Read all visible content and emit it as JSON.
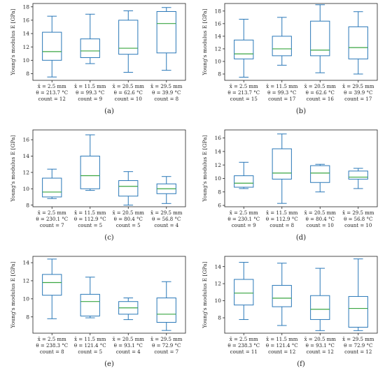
{
  "chart_data": [
    {
      "type": "box",
      "panel_label": "(a)",
      "ylabel": "Young's modulus E [GPa]",
      "ylim": [
        7,
        18.5
      ],
      "yticks": [
        8,
        10,
        12,
        14,
        16,
        18
      ],
      "categories": [
        [
          "x̄ = 2.5 mm",
          "θ = 213.7 °C",
          "count = 12"
        ],
        [
          "x̄ = 11.5 mm",
          "θ = 99.3 °C",
          "count = 9"
        ],
        [
          "x̄ = 20.5 mm",
          "θ = 62.6 °C",
          "count = 10"
        ],
        [
          "x̄ = 29.5 mm",
          "θ = 39.9 °C",
          "count = 8"
        ]
      ],
      "boxes": [
        {
          "min": 7.5,
          "q1": 10.0,
          "median": 11.3,
          "q3": 14.2,
          "max": 16.6
        },
        {
          "min": 9.5,
          "q1": 10.4,
          "median": 11.4,
          "q3": 13.2,
          "max": 16.9
        },
        {
          "min": 8.2,
          "q1": 10.9,
          "median": 11.8,
          "q3": 16.0,
          "max": 17.4
        },
        {
          "min": 8.5,
          "q1": 11.1,
          "median": 15.5,
          "q3": 17.3,
          "max": 17.9
        }
      ]
    },
    {
      "type": "box",
      "panel_label": "(b)",
      "ylabel": "Young's modulus E [GPa]",
      "ylim": [
        7,
        19.2
      ],
      "yticks": [
        8,
        10,
        12,
        14,
        16,
        18
      ],
      "categories": [
        [
          "x̄ = 2.5 mm",
          "θ = 213.7 °C",
          "count = 15"
        ],
        [
          "x̄ = 11.5 mm",
          "θ = 99.3 °C",
          "count = 17"
        ],
        [
          "x̄ = 20.5 mm",
          "θ = 62.6 °C",
          "count = 16"
        ],
        [
          "x̄ = 29.5 mm",
          "θ = 39.9 °C",
          "count = 17"
        ]
      ],
      "boxes": [
        {
          "min": 7.5,
          "q1": 10.4,
          "median": 11.2,
          "q3": 13.4,
          "max": 16.7
        },
        {
          "min": 9.4,
          "q1": 10.9,
          "median": 12.0,
          "q3": 14.0,
          "max": 17.0
        },
        {
          "min": 8.2,
          "q1": 10.9,
          "median": 11.8,
          "q3": 16.4,
          "max": 19.0
        },
        {
          "min": 8.0,
          "q1": 10.4,
          "median": 12.2,
          "q3": 15.5,
          "max": 17.9
        }
      ]
    },
    {
      "type": "box",
      "panel_label": "(c)",
      "ylabel": "Young's modulus E [GPa]",
      "ylim": [
        7.8,
        17.2
      ],
      "yticks": [
        8,
        10,
        12,
        14,
        16
      ],
      "categories": [
        [
          "x̄ = 2.5 mm",
          "θ = 230.1 °C",
          "count = 7"
        ],
        [
          "x̄ = 11.5 mm",
          "θ = 112.9 °C",
          "count = 5"
        ],
        [
          "x̄ = 20.5 mm",
          "θ = 80.4 °C",
          "count = 5"
        ],
        [
          "x̄ = 29.5 mm",
          "θ = 56.8 °C",
          "count = 4"
        ]
      ],
      "boxes": [
        {
          "min": 8.8,
          "q1": 9.0,
          "median": 9.6,
          "q3": 11.3,
          "max": 12.4
        },
        {
          "min": 9.8,
          "q1": 10.0,
          "median": 11.6,
          "q3": 14.0,
          "max": 16.6
        },
        {
          "min": 8.0,
          "q1": 9.1,
          "median": 10.3,
          "q3": 11.0,
          "max": 12.1
        },
        {
          "min": 8.2,
          "q1": 9.4,
          "median": 10.0,
          "q3": 10.6,
          "max": 11.5
        }
      ]
    },
    {
      "type": "box",
      "panel_label": "(d)",
      "ylabel": "Young's modulus E [GPa]",
      "ylim": [
        5.8,
        17.2
      ],
      "yticks": [
        6,
        8,
        10,
        12,
        14,
        16
      ],
      "categories": [
        [
          "x̄ = 2.5 mm",
          "θ = 230.1 °C",
          "count = 9"
        ],
        [
          "x̄ = 11.5 mm",
          "θ = 112.9 °C",
          "count = 8"
        ],
        [
          "x̄ = 20.5 mm",
          "θ = 80.4 °C",
          "count = 10"
        ],
        [
          "x̄ = 29.5 mm",
          "θ = 56.8 °C",
          "count = 10"
        ]
      ],
      "boxes": [
        {
          "min": 8.5,
          "q1": 8.7,
          "median": 9.3,
          "q3": 10.4,
          "max": 12.4
        },
        {
          "min": 6.3,
          "q1": 9.9,
          "median": 10.8,
          "q3": 14.4,
          "max": 16.6
        },
        {
          "min": 8.0,
          "q1": 9.4,
          "median": 10.8,
          "q3": 11.9,
          "max": 12.1
        },
        {
          "min": 8.5,
          "q1": 9.9,
          "median": 10.2,
          "q3": 11.1,
          "max": 11.5
        }
      ]
    },
    {
      "type": "box",
      "panel_label": "(e)",
      "ylabel": "Young's modulus E [GPa]",
      "ylim": [
        6.2,
        14.7
      ],
      "yticks": [
        8,
        10,
        12,
        14
      ],
      "categories": [
        [
          "x̄ = 2.5 mm",
          "θ = 238.3 °C",
          "count = 8"
        ],
        [
          "x̄ = 11.5 mm",
          "θ = 121.4 °C",
          "count = 5"
        ],
        [
          "x̄ = 20.5 mm",
          "θ = 93.1 °C",
          "count = 4"
        ],
        [
          "x̄ = 29.5 mm",
          "θ = 72.9 °C",
          "count = 7"
        ]
      ],
      "boxes": [
        {
          "min": 7.8,
          "q1": 10.4,
          "median": 11.8,
          "q3": 12.7,
          "max": 14.4
        },
        {
          "min": 7.9,
          "q1": 8.1,
          "median": 9.7,
          "q3": 10.5,
          "max": 12.4
        },
        {
          "min": 7.7,
          "q1": 8.3,
          "median": 9.0,
          "q3": 9.7,
          "max": 10.1
        },
        {
          "min": 6.5,
          "q1": 7.4,
          "median": 8.3,
          "q3": 10.1,
          "max": 11.9
        }
      ]
    },
    {
      "type": "box",
      "panel_label": "(f)",
      "ylabel": "Young's modulus E [GPa]",
      "ylim": [
        6.2,
        15.2
      ],
      "yticks": [
        8,
        10,
        12,
        14
      ],
      "categories": [
        [
          "x̄ = 2.5 mm",
          "θ = 238.3 °C",
          "count = 11"
        ],
        [
          "x̄ = 11.5 mm",
          "θ = 121.4 °C",
          "count = 12"
        ],
        [
          "x̄ = 20.5 mm",
          "θ = 93.1 °C",
          "count = 12"
        ],
        [
          "x̄ = 29.5 mm",
          "θ = 72.9 °C",
          "count = 12"
        ]
      ],
      "boxes": [
        {
          "min": 7.8,
          "q1": 9.5,
          "median": 10.9,
          "q3": 12.5,
          "max": 14.5
        },
        {
          "min": 7.1,
          "q1": 9.3,
          "median": 10.3,
          "q3": 11.8,
          "max": 14.4
        },
        {
          "min": 6.5,
          "q1": 7.8,
          "median": 9.0,
          "q3": 10.6,
          "max": 13.8
        },
        {
          "min": 6.5,
          "q1": 6.9,
          "median": 9.1,
          "q3": 10.5,
          "max": 14.9
        }
      ]
    }
  ],
  "colors": {
    "box": "#2a78b8",
    "median": "#3aa642",
    "axis": "#222222"
  }
}
